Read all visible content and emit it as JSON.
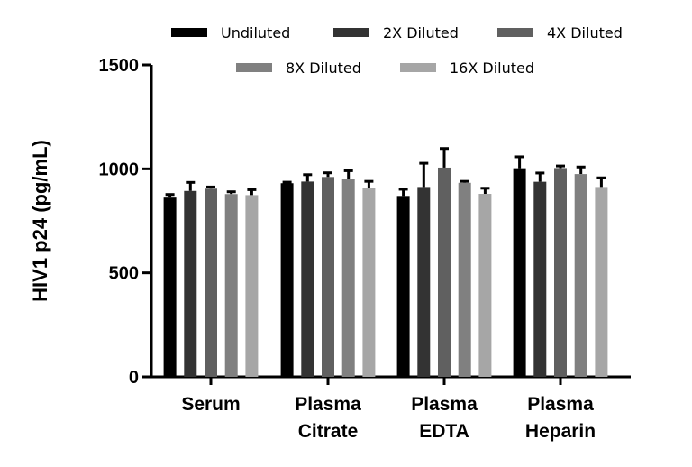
{
  "chart_data": {
    "type": "bar",
    "title": "",
    "xlabel": "",
    "ylabel": "HIV1 p24 (pg/mL)",
    "ylim": [
      0,
      1500
    ],
    "yticks": [
      0,
      500,
      1000,
      1500
    ],
    "grid": false,
    "legend_placement": "top",
    "categories": [
      [
        "Serum"
      ],
      [
        "Plasma",
        "Citrate"
      ],
      [
        "Plasma",
        "EDTA"
      ],
      [
        "Plasma",
        "Heparin"
      ]
    ],
    "series": [
      {
        "name": "Undiluted",
        "color": "#000000",
        "values": [
          862,
          931,
          870,
          1003
        ],
        "error": [
          15,
          5,
          32,
          55
        ]
      },
      {
        "name": "2X Diluted",
        "color": "#333333",
        "values": [
          894,
          939,
          913,
          938
        ],
        "error": [
          41,
          33,
          114,
          42
        ]
      },
      {
        "name": "4X Diluted",
        "color": "#606060",
        "values": [
          905,
          961,
          1006,
          1004
        ],
        "error": [
          8,
          20,
          92,
          10
        ]
      },
      {
        "name": "8X Diluted",
        "color": "#808080",
        "values": [
          879,
          952,
          933,
          975
        ],
        "error": [
          11,
          39,
          7,
          34
        ]
      },
      {
        "name": "16X Diluted",
        "color": "#a6a6a6",
        "values": [
          874,
          909,
          880,
          913
        ],
        "error": [
          26,
          31,
          27,
          44
        ]
      }
    ]
  }
}
